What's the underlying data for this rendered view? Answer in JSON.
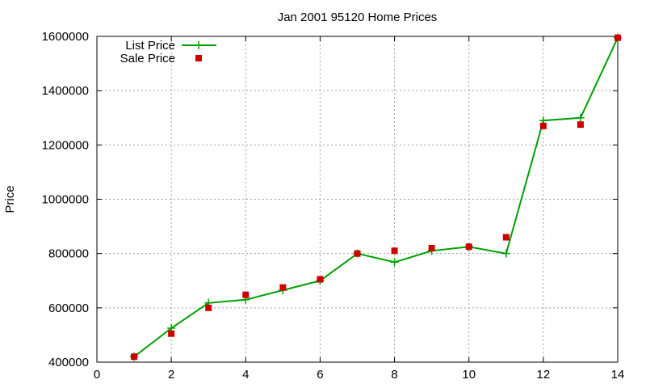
{
  "chart_data": {
    "type": "line",
    "title": "Jan 2001 95120 Home Prices",
    "xlabel": "",
    "ylabel": "Price",
    "xlim": [
      0,
      14
    ],
    "ylim": [
      400000,
      1600000
    ],
    "x_ticks": [
      0,
      2,
      4,
      6,
      8,
      10,
      12,
      14
    ],
    "y_ticks": [
      400000,
      600000,
      800000,
      1000000,
      1200000,
      1400000,
      1600000
    ],
    "grid": true,
    "legend_position": "top-left",
    "series": [
      {
        "name": "List Price",
        "style": "line-with-plus-markers",
        "color": "#00a000",
        "x": [
          1,
          2,
          3,
          4,
          5,
          6,
          7,
          8,
          9,
          10,
          11,
          12,
          13,
          14
        ],
        "y": [
          420000,
          525000,
          618000,
          630000,
          665000,
          700000,
          800000,
          768000,
          810000,
          825000,
          800000,
          1290000,
          1300000,
          1595000
        ]
      },
      {
        "name": "Sale Price",
        "style": "square-points",
        "color": "#cc0000",
        "x": [
          1,
          2,
          3,
          4,
          5,
          6,
          7,
          8,
          9,
          10,
          11,
          12,
          13,
          14
        ],
        "y": [
          420000,
          505000,
          600000,
          648000,
          675000,
          705000,
          800000,
          810000,
          820000,
          825000,
          860000,
          1270000,
          1275000,
          1595000
        ]
      }
    ]
  }
}
